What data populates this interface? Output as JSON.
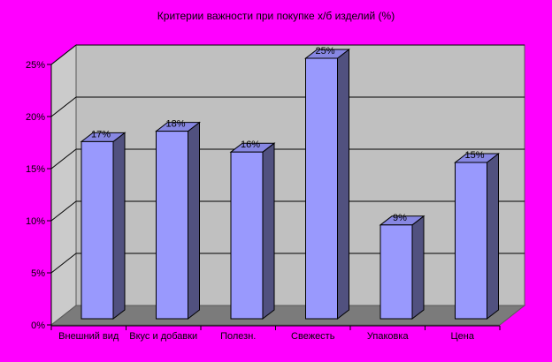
{
  "page": {
    "background_color": "#FF00FF"
  },
  "chart_data": {
    "type": "bar",
    "style": "3d-column",
    "title": "Критерии важности при покупке х/б изделий (%)",
    "title_color": "#000000",
    "categories": [
      "Внешний вид",
      "Вкус и добавки",
      "Полезн.",
      "Свежесть",
      "Упаковка",
      "Цена"
    ],
    "values": [
      17,
      18,
      16,
      25,
      9,
      15
    ],
    "data_labels": [
      "17%",
      "18%",
      "16%",
      "25%",
      "9%",
      "15%"
    ],
    "xlabel": "",
    "ylabel": "",
    "ylim": [
      0,
      25
    ],
    "ytick_step": 5,
    "ytick_labels": [
      "0%",
      "5%",
      "10%",
      "15%",
      "20%",
      "25%"
    ],
    "grid": true,
    "legend": false,
    "colors": {
      "background": "#FF00FF",
      "text": "#000000",
      "gridline": "#000000",
      "axis": "#000000",
      "bar_front": "#9999FD",
      "bar_top": "#8787E2",
      "bar_side": "#51517F",
      "bar_outline": "#000000",
      "wall_back": "#C0C0C0",
      "wall_side": "#CBCBCB",
      "wall_edge": "#595959",
      "floor": "#7B7B7B"
    }
  }
}
